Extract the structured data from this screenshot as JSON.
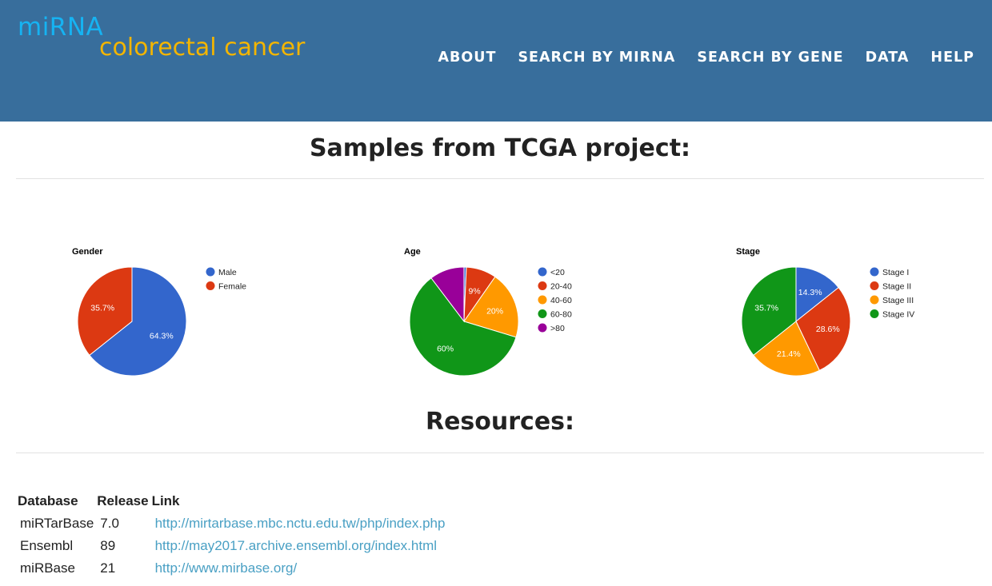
{
  "header": {
    "logo_line1": "miRNA",
    "logo_line2": "colorectal cancer",
    "nav": [
      "ABOUT",
      "SEARCH BY MIRNA",
      "SEARCH BY GENE",
      "DATA",
      "HELP"
    ]
  },
  "samples": {
    "title": "Samples from TCGA project:"
  },
  "chart_data": [
    {
      "type": "pie",
      "title": "Gender",
      "labels": [
        "Male",
        "Female"
      ],
      "values": [
        64.3,
        35.7
      ],
      "slice_labels": [
        "64.3%",
        "35.7%"
      ],
      "colors": [
        "#3366cc",
        "#dc3912"
      ],
      "legend": "right"
    },
    {
      "type": "pie",
      "title": "Age",
      "labels": [
        "<20",
        "20-40",
        "40-60",
        "60-80",
        ">80"
      ],
      "values": [
        0.7,
        9,
        20,
        60,
        10.3
      ],
      "slice_labels": [
        "",
        "9%",
        "20%",
        "60%",
        ""
      ],
      "colors": [
        "#3366cc",
        "#dc3912",
        "#ff9900",
        "#109618",
        "#990099"
      ],
      "legend": "right"
    },
    {
      "type": "pie",
      "title": "Stage",
      "labels": [
        "Stage I",
        "Stage II",
        "Stage III",
        "Stage IV"
      ],
      "values": [
        14.3,
        28.6,
        21.4,
        35.7
      ],
      "slice_labels": [
        "14.3%",
        "28.6%",
        "21.4%",
        "35.7%"
      ],
      "colors": [
        "#3366cc",
        "#dc3912",
        "#ff9900",
        "#109618"
      ],
      "legend": "right"
    }
  ],
  "resources": {
    "title": "Resources:",
    "columns": [
      "Database",
      "Release",
      "Link"
    ],
    "rows": [
      {
        "database": "miRTarBase",
        "release": "7.0",
        "link": "http://mirtarbase.mbc.nctu.edu.tw/php/index.php"
      },
      {
        "database": "Ensembl",
        "release": "89",
        "link": "http://may2017.archive.ensembl.org/index.html"
      },
      {
        "database": "miRBase",
        "release": "21",
        "link": "http://www.mirbase.org/"
      }
    ]
  }
}
